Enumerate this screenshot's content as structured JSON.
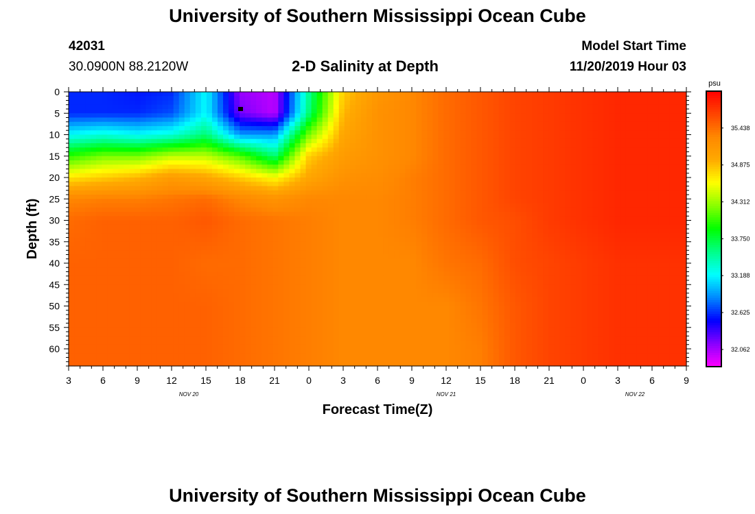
{
  "header": {
    "title": "University of Southern Mississippi Ocean Cube",
    "station_id": "42031",
    "station_coords": "30.0900N 88.2120W",
    "plot_title": "2-D Salinity at Depth",
    "model_label": "Model Start Time",
    "model_time": "11/20/2019 Hour 03"
  },
  "footer": {
    "title": "University of Southern Mississippi Ocean Cube"
  },
  "chart_data": {
    "type": "heatmap",
    "title": "2-D Salinity at Depth",
    "xlabel": "Forecast Time(Z)",
    "ylabel": "Depth (ft)",
    "units": "psu",
    "x_hours": [
      0,
      3,
      6,
      9,
      12,
      15,
      18,
      21,
      24,
      27,
      30,
      33,
      36,
      39,
      42,
      45,
      48,
      51,
      54
    ],
    "x_tick_labels": [
      "3",
      "6",
      "9",
      "12",
      "15",
      "18",
      "21",
      "0",
      "3",
      "6",
      "9",
      "12",
      "15",
      "18",
      "21",
      "0",
      "3",
      "6",
      "9"
    ],
    "date_labels": [
      {
        "label": "NOV  20",
        "hour": 10.5
      },
      {
        "label": "NOV  21",
        "hour": 33
      },
      {
        "label": "NOV  22",
        "hour": 49.5
      }
    ],
    "y_ticks": [
      0,
      5,
      10,
      15,
      20,
      25,
      30,
      35,
      40,
      45,
      50,
      55,
      60
    ],
    "ylim": [
      0,
      64
    ],
    "colorbar": {
      "range": [
        31.8,
        36.0
      ],
      "tick_values": [
        35.438,
        34.875,
        34.312,
        33.75,
        33.188,
        32.625,
        32.062
      ],
      "tick_labels": [
        "35.438",
        "34.875",
        "34.312",
        "33.750",
        "33.188",
        "32.625",
        "32.062"
      ],
      "colors": [
        "#ff00ff",
        "#8800ff",
        "#0000ff",
        "#0088ff",
        "#00ffff",
        "#00ff88",
        "#00ff00",
        "#88ff00",
        "#ffff00",
        "#ffaa00",
        "#ff8800",
        "#ff4400",
        "#ff0000"
      ]
    },
    "salinity_grid_depths": [
      0,
      5,
      10,
      15,
      20,
      25,
      30,
      40,
      50,
      60,
      64
    ],
    "salinity_grid": [
      [
        32.6,
        32.6,
        32.55,
        32.6,
        33.2,
        32.1,
        32.0,
        33.5,
        34.8,
        35.15,
        35.3,
        35.45,
        35.55,
        35.65,
        35.7,
        35.75,
        35.8,
        35.8,
        35.8
      ],
      [
        32.6,
        32.6,
        32.6,
        32.7,
        33.2,
        32.2,
        32.0,
        33.6,
        34.9,
        35.2,
        35.3,
        35.45,
        35.55,
        35.65,
        35.7,
        35.75,
        35.8,
        35.8,
        35.8
      ],
      [
        33.2,
        33.3,
        33.2,
        33.3,
        33.6,
        32.9,
        32.9,
        34.2,
        35.0,
        35.2,
        35.3,
        35.45,
        35.55,
        35.65,
        35.7,
        35.75,
        35.8,
        35.8,
        35.8
      ],
      [
        34.0,
        34.2,
        34.2,
        34.4,
        34.4,
        34.1,
        33.6,
        34.8,
        35.1,
        35.2,
        35.3,
        35.45,
        35.55,
        35.65,
        35.7,
        35.75,
        35.8,
        35.8,
        35.8
      ],
      [
        34.7,
        34.8,
        34.9,
        35.1,
        35.0,
        34.8,
        34.6,
        35.0,
        35.2,
        35.25,
        35.35,
        35.45,
        35.55,
        35.65,
        35.7,
        35.75,
        35.8,
        35.8,
        35.8
      ],
      [
        35.3,
        35.35,
        35.35,
        35.4,
        35.45,
        35.3,
        35.2,
        35.3,
        35.3,
        35.3,
        35.35,
        35.45,
        35.55,
        35.65,
        35.7,
        35.75,
        35.8,
        35.8,
        35.8
      ],
      [
        35.45,
        35.5,
        35.5,
        35.5,
        35.55,
        35.45,
        35.4,
        35.35,
        35.3,
        35.3,
        35.35,
        35.45,
        35.55,
        35.6,
        35.7,
        35.75,
        35.8,
        35.8,
        35.8
      ],
      [
        35.5,
        35.5,
        35.5,
        35.5,
        35.45,
        35.45,
        35.4,
        35.35,
        35.3,
        35.3,
        35.3,
        35.4,
        35.45,
        35.6,
        35.65,
        35.7,
        35.75,
        35.75,
        35.75
      ],
      [
        35.5,
        35.5,
        35.5,
        35.5,
        35.5,
        35.45,
        35.4,
        35.35,
        35.3,
        35.3,
        35.3,
        35.3,
        35.4,
        35.55,
        35.65,
        35.7,
        35.75,
        35.75,
        35.75
      ],
      [
        35.5,
        35.5,
        35.5,
        35.5,
        35.5,
        35.45,
        35.4,
        35.35,
        35.3,
        35.3,
        35.3,
        35.3,
        35.35,
        35.55,
        35.65,
        35.7,
        35.75,
        35.75,
        35.75
      ],
      [
        35.5,
        35.5,
        35.5,
        35.5,
        35.5,
        35.45,
        35.4,
        35.35,
        35.3,
        35.3,
        35.3,
        35.3,
        35.35,
        35.55,
        35.65,
        35.7,
        35.75,
        35.75,
        35.75
      ]
    ],
    "marker": {
      "hour": 15,
      "depth": 4
    }
  }
}
